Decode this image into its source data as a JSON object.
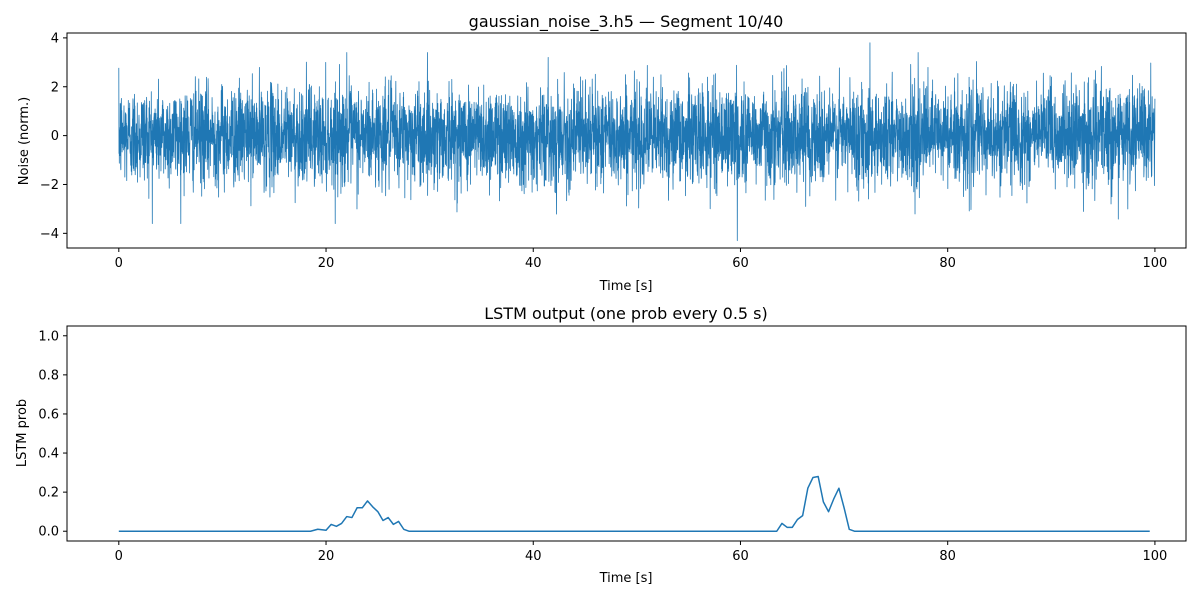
{
  "chart_data": [
    {
      "type": "line",
      "title": "gaussian_noise_3.h5 — Segment 10/40",
      "xlabel": "Time [s]",
      "ylabel": "Noise (norm.)",
      "xlim": [
        -5,
        103
      ],
      "ylim": [
        -4.6,
        4.2
      ],
      "x_ticks": [
        0,
        20,
        40,
        60,
        80,
        100
      ],
      "y_ticks": [
        -4,
        -2,
        0,
        2,
        4
      ],
      "color": "#1f77b4",
      "series": [
        {
          "x_range": [
            0,
            100
          ],
          "distribution": "gaussian",
          "mean": 0,
          "std": 1,
          "approx_peaks": [
            {
              "x": 59.7,
              "y": -4.3
            },
            {
              "x": 72.5,
              "y": 3.8
            },
            {
              "x": 22.0,
              "y": 3.4
            }
          ]
        }
      ]
    },
    {
      "type": "line",
      "title": "LSTM output (one prob every 0.5 s)",
      "xlabel": "Time [s]",
      "ylabel": "LSTM prob",
      "xlim": [
        -5,
        103
      ],
      "ylim": [
        -0.05,
        1.05
      ],
      "x_ticks": [
        0,
        20,
        40,
        60,
        80,
        100
      ],
      "y_ticks": [
        0.0,
        0.2,
        0.4,
        0.6,
        0.8,
        1.0
      ],
      "color": "#1f77b4",
      "series": [
        {
          "points": [
            [
              0,
              0.0
            ],
            [
              18.5,
              0.0
            ],
            [
              19.2,
              0.01
            ],
            [
              20.0,
              0.005
            ],
            [
              20.5,
              0.035
            ],
            [
              21.0,
              0.025
            ],
            [
              21.5,
              0.04
            ],
            [
              22.0,
              0.075
            ],
            [
              22.5,
              0.07
            ],
            [
              23.0,
              0.12
            ],
            [
              23.5,
              0.12
            ],
            [
              24.0,
              0.155
            ],
            [
              24.5,
              0.125
            ],
            [
              25.0,
              0.1
            ],
            [
              25.5,
              0.055
            ],
            [
              26.0,
              0.07
            ],
            [
              26.5,
              0.035
            ],
            [
              27.0,
              0.05
            ],
            [
              27.5,
              0.01
            ],
            [
              28.0,
              0.0
            ],
            [
              28.5,
              0.0
            ],
            [
              63.5,
              0.0
            ],
            [
              64.0,
              0.04
            ],
            [
              64.5,
              0.02
            ],
            [
              65.0,
              0.02
            ],
            [
              65.5,
              0.06
            ],
            [
              66.0,
              0.08
            ],
            [
              66.5,
              0.22
            ],
            [
              67.0,
              0.275
            ],
            [
              67.5,
              0.28
            ],
            [
              68.0,
              0.15
            ],
            [
              68.5,
              0.1
            ],
            [
              69.0,
              0.165
            ],
            [
              69.5,
              0.22
            ],
            [
              70.0,
              0.12
            ],
            [
              70.5,
              0.01
            ],
            [
              71.0,
              0.0
            ],
            [
              99.5,
              0.0
            ]
          ]
        }
      ]
    }
  ]
}
